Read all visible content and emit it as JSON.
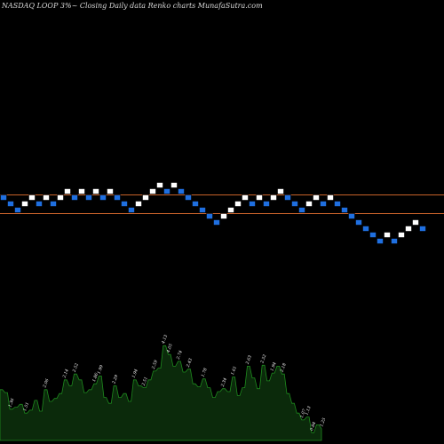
{
  "header": {
    "title": "NASDAQ LOOP 3%~  Closing Daily data  Renko  charts MunafaSutra.com"
  },
  "colors": {
    "background": "#000000",
    "up_brick": "#ffffff",
    "down_brick": "#1f6fe0",
    "brick_edge": "#000000",
    "support_line": "#c8622a",
    "volume_fill": "#0b2a0b",
    "volume_edge": "#1e8a1e"
  },
  "chart_data": {
    "type": "renko",
    "title": "NASDAQ LOOP 3%~  Closing Daily data  Renko  charts MunafaSutra.com",
    "brick_percent": 3,
    "bricks": [
      {
        "dir": "down",
        "level": 0
      },
      {
        "dir": "down",
        "level": -1
      },
      {
        "dir": "down",
        "level": -2
      },
      {
        "dir": "up",
        "level": -1
      },
      {
        "dir": "up",
        "level": 0
      },
      {
        "dir": "down",
        "level": -1
      },
      {
        "dir": "up",
        "level": 0
      },
      {
        "dir": "down",
        "level": -1
      },
      {
        "dir": "up",
        "level": 0
      },
      {
        "dir": "up",
        "level": 1
      },
      {
        "dir": "down",
        "level": 0
      },
      {
        "dir": "up",
        "level": 1
      },
      {
        "dir": "down",
        "level": 0
      },
      {
        "dir": "up",
        "level": 1
      },
      {
        "dir": "down",
        "level": 0
      },
      {
        "dir": "up",
        "level": 1
      },
      {
        "dir": "down",
        "level": 0
      },
      {
        "dir": "down",
        "level": -1
      },
      {
        "dir": "down",
        "level": -2
      },
      {
        "dir": "up",
        "level": -1
      },
      {
        "dir": "up",
        "level": 0
      },
      {
        "dir": "up",
        "level": 1
      },
      {
        "dir": "up",
        "level": 2
      },
      {
        "dir": "down",
        "level": 1
      },
      {
        "dir": "up",
        "level": 2
      },
      {
        "dir": "down",
        "level": 1
      },
      {
        "dir": "down",
        "level": 0
      },
      {
        "dir": "down",
        "level": -1
      },
      {
        "dir": "down",
        "level": -2
      },
      {
        "dir": "down",
        "level": -3
      },
      {
        "dir": "down",
        "level": -4
      },
      {
        "dir": "up",
        "level": -3
      },
      {
        "dir": "up",
        "level": -2
      },
      {
        "dir": "up",
        "level": -1
      },
      {
        "dir": "up",
        "level": 0
      },
      {
        "dir": "down",
        "level": -1
      },
      {
        "dir": "up",
        "level": 0
      },
      {
        "dir": "down",
        "level": -1
      },
      {
        "dir": "up",
        "level": 0
      },
      {
        "dir": "up",
        "level": 1
      },
      {
        "dir": "down",
        "level": 0
      },
      {
        "dir": "down",
        "level": -1
      },
      {
        "dir": "down",
        "level": -2
      },
      {
        "dir": "up",
        "level": -1
      },
      {
        "dir": "up",
        "level": 0
      },
      {
        "dir": "down",
        "level": -1
      },
      {
        "dir": "up",
        "level": 0
      },
      {
        "dir": "down",
        "level": -1
      },
      {
        "dir": "down",
        "level": -2
      },
      {
        "dir": "down",
        "level": -3
      },
      {
        "dir": "down",
        "level": -4
      },
      {
        "dir": "down",
        "level": -5
      },
      {
        "dir": "down",
        "level": -6
      },
      {
        "dir": "down",
        "level": -7
      },
      {
        "dir": "up",
        "level": -6
      },
      {
        "dir": "down",
        "level": -7
      },
      {
        "dir": "up",
        "level": -6
      },
      {
        "dir": "up",
        "level": -5
      },
      {
        "dir": "up",
        "level": -4
      },
      {
        "dir": "down",
        "level": -5
      }
    ],
    "reference_lines": [
      1,
      -2
    ],
    "volume": {
      "values": [
        52,
        49,
        32,
        34,
        37,
        28,
        31,
        41,
        30,
        52,
        40,
        43,
        48,
        62,
        56,
        68,
        62,
        49,
        52,
        58,
        66,
        44,
        38,
        56,
        44,
        48,
        40,
        62,
        56,
        54,
        62,
        71,
        74,
        97,
        88,
        76,
        81,
        70,
        73,
        58,
        55,
        63,
        54,
        44,
        50,
        53,
        50,
        65,
        46,
        54,
        76,
        64,
        53,
        77,
        61,
        69,
        76,
        68,
        48,
        38,
        28,
        21,
        24,
        8,
        16,
        12
      ],
      "labels": [
        "",
        "",
        "1.36",
        "",
        "",
        "1.51",
        "",
        "",
        "",
        "2.06",
        "",
        "",
        "",
        "2.14",
        "",
        "2.52",
        "",
        "",
        "",
        "1.86",
        "1.99",
        "",
        "",
        "2.29",
        "",
        "",
        "",
        "1.94",
        "",
        "2.51",
        "",
        "2.59",
        "",
        "4.13",
        "4.05",
        "",
        "2.74",
        "",
        "2.43",
        "",
        "",
        "1.78",
        "",
        "",
        "",
        "2.34",
        "",
        "1.61",
        "",
        "",
        "2.63",
        "",
        "",
        "2.52",
        "",
        "1.94",
        "",
        "2.18",
        "",
        "",
        "",
        "1.07",
        "1.13",
        "0.84",
        "",
        "1.25"
      ]
    }
  }
}
